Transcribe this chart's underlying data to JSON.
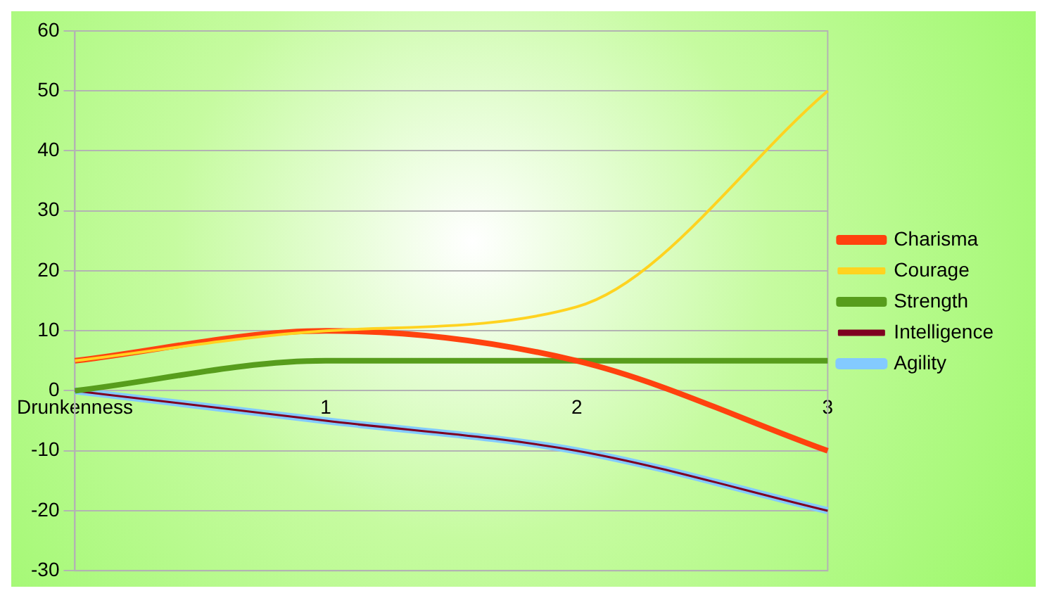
{
  "chart_data": {
    "type": "line",
    "categories": [
      "Drunkenness",
      "1",
      "2",
      "3"
    ],
    "series": [
      {
        "name": "Charisma",
        "color": "#ff420e",
        "values": [
          5,
          10,
          5,
          -10
        ]
      },
      {
        "name": "Courage",
        "color": "#ffd320",
        "values": [
          5,
          10,
          14,
          50
        ]
      },
      {
        "name": "Strength",
        "color": "#579d1c",
        "values": [
          0,
          5,
          5,
          5
        ]
      },
      {
        "name": "Intelligence",
        "color": "#7e0021",
        "values": [
          0,
          -5,
          -10,
          -20
        ]
      },
      {
        "name": "Agility",
        "color": "#83caff",
        "values": [
          0,
          -5,
          -10,
          -20
        ]
      }
    ],
    "ylim": [
      -30,
      60
    ],
    "yticks": [
      -30,
      -20,
      -10,
      0,
      10,
      20,
      30,
      40,
      50,
      60
    ],
    "grid": "y",
    "legend": "right",
    "marker": "none",
    "line_style": "solid"
  }
}
